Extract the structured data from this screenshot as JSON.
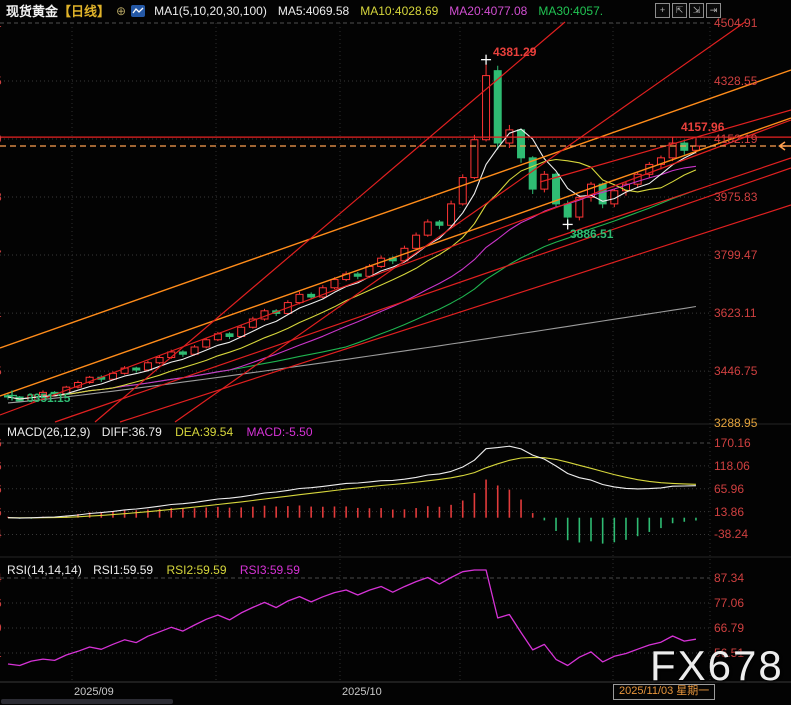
{
  "header": {
    "symbol": "现货黄金",
    "period": "【日线】",
    "expand_icon": "⊕",
    "ma_set_label": "MA1(5,10,20,30,100)",
    "ma5_label": "MA5:4069.58",
    "ma10_label": "MA10:4028.69",
    "ma20_label": "MA20:4077.08",
    "ma30_label": "MA30:4057."
  },
  "toolbar": {
    "icons": [
      {
        "glyph": "+",
        "name": "crosshair-tool-icon"
      },
      {
        "glyph": "⇱",
        "name": "scale-left-tool-icon"
      },
      {
        "glyph": "⇲",
        "name": "scale-right-tool-icon"
      },
      {
        "glyph": "⇥",
        "name": "detach-window-icon"
      }
    ]
  },
  "panes": {
    "macd": {
      "title": "MACD(26,12,9)",
      "diff": "DIFF:36.79",
      "dea": "DEA:39.54",
      "macd": "MACD:-5.50"
    },
    "rsi": {
      "title": "RSI(14,14,14)",
      "rsi1": "RSI1:59.59",
      "rsi2": "RSI2:59.59",
      "rsi3": "RSI3:59.59"
    }
  },
  "annotations": {
    "peak": "4381.29",
    "trough": "3886.51",
    "start_low": "3351.15",
    "alert": "4157.96",
    "bottom_axis": "3288.95"
  },
  "x_axis": {
    "september": "2025/09",
    "october": "2025/10",
    "current_date": "2025/11/03 星期一"
  },
  "watermark": "FX678",
  "colors": {
    "up": "#ff3434",
    "down": "#2fbc73",
    "ma5": "#ededed",
    "ma10": "#d6d63c",
    "ma20": "#c935c9",
    "ma30": "#1fb450",
    "ma100": "#9c9c9c",
    "trend_orange": "#ff8c1a",
    "trend_red": "#e02020",
    "alert_red": "#e82222",
    "last_price_orange": "#ffa050",
    "axis_red": "#cf4040",
    "axis_orange": "#e2a23c",
    "diff_line": "#ededed",
    "dea_line": "#d6d63c",
    "rsi_line": "#d633d6"
  },
  "chart_data": {
    "type": "candlestick",
    "symbol": "现货黄金",
    "interval": "日线",
    "y_max": 4504.91,
    "y_min": 3288.95,
    "y_ticks": [
      "4504.91",
      "4328.55",
      "4152.19",
      "3975.83",
      "3799.47",
      "3623.11",
      "3446.75"
    ],
    "y_bottom_label": "3288.95",
    "macd_ticks": [
      "170.16",
      "118.06",
      "65.96",
      "13.86",
      "-38.24"
    ],
    "rsi_ticks": [
      "87.34",
      "77.06",
      "66.79",
      "56.51"
    ],
    "x_labels": [
      "2025/09",
      "2025/10",
      "2025/11/03 星期一"
    ],
    "alert_price": 4157.96,
    "last_price": 4131,
    "peak_price": 4381.29,
    "trough_price": 3886.51,
    "start_low_price": 3351.15,
    "readouts": {
      "ma5": 4069.58,
      "ma10": 4028.69,
      "ma20": 4077.08,
      "ma30": 4057,
      "diff": 36.79,
      "dea": 39.54,
      "macd": -5.5,
      "rsi1": 59.59,
      "rsi2": 59.59,
      "rsi3": 59.59
    },
    "ma_periods": [
      5,
      10,
      20,
      30,
      100
    ],
    "ma100_endpoints": [
      3350,
      3643
    ],
    "candles": [
      [
        3372,
        3378,
        3360,
        3368
      ],
      [
        3368,
        3371,
        3351.15,
        3356
      ],
      [
        3356,
        3378,
        3352,
        3374
      ],
      [
        3374,
        3388,
        3368,
        3382
      ],
      [
        3382,
        3386,
        3370,
        3378
      ],
      [
        3378,
        3402,
        3374,
        3398
      ],
      [
        3398,
        3418,
        3394,
        3412
      ],
      [
        3412,
        3432,
        3408,
        3428
      ],
      [
        3428,
        3434,
        3414,
        3422
      ],
      [
        3422,
        3446,
        3418,
        3440
      ],
      [
        3440,
        3462,
        3436,
        3456
      ],
      [
        3456,
        3460,
        3442,
        3450
      ],
      [
        3450,
        3478,
        3446,
        3472
      ],
      [
        3472,
        3494,
        3468,
        3488
      ],
      [
        3488,
        3512,
        3484,
        3505
      ],
      [
        3505,
        3510,
        3490,
        3498
      ],
      [
        3498,
        3526,
        3494,
        3520
      ],
      [
        3520,
        3548,
        3516,
        3542
      ],
      [
        3542,
        3566,
        3538,
        3560
      ],
      [
        3560,
        3565,
        3544,
        3552
      ],
      [
        3552,
        3586,
        3548,
        3580
      ],
      [
        3580,
        3612,
        3576,
        3605
      ],
      [
        3605,
        3636,
        3600,
        3630
      ],
      [
        3630,
        3635,
        3614,
        3622
      ],
      [
        3622,
        3662,
        3618,
        3655
      ],
      [
        3655,
        3688,
        3650,
        3680
      ],
      [
        3680,
        3686,
        3664,
        3672
      ],
      [
        3672,
        3708,
        3668,
        3700
      ],
      [
        3700,
        3732,
        3696,
        3725
      ],
      [
        3725,
        3750,
        3720,
        3742
      ],
      [
        3742,
        3748,
        3726,
        3735
      ],
      [
        3735,
        3772,
        3730,
        3765
      ],
      [
        3765,
        3798,
        3760,
        3790
      ],
      [
        3790,
        3796,
        3772,
        3782
      ],
      [
        3782,
        3828,
        3778,
        3820
      ],
      [
        3820,
        3868,
        3815,
        3860
      ],
      [
        3860,
        3908,
        3855,
        3900
      ],
      [
        3900,
        3906,
        3878,
        3890
      ],
      [
        3890,
        3965,
        3885,
        3955
      ],
      [
        3955,
        4045,
        3950,
        4035
      ],
      [
        4035,
        4165,
        4030,
        4150
      ],
      [
        4150,
        4381.29,
        4145,
        4345
      ],
      [
        4360,
        4375,
        4120,
        4140
      ],
      [
        4140,
        4195,
        4125,
        4180
      ],
      [
        4180,
        4185,
        4080,
        4095
      ],
      [
        4095,
        4100,
        3985,
        4000
      ],
      [
        4000,
        4055,
        3990,
        4045
      ],
      [
        4045,
        4050,
        3945,
        3955
      ],
      [
        3955,
        3965,
        3886.51,
        3915
      ],
      [
        3915,
        3982,
        3905,
        3975
      ],
      [
        3975,
        4022,
        3962,
        4015
      ],
      [
        4015,
        4020,
        3942,
        3955
      ],
      [
        3955,
        4000,
        3945,
        3995
      ],
      [
        3995,
        4022,
        3980,
        4015
      ],
      [
        4015,
        4052,
        4005,
        4045
      ],
      [
        4045,
        4082,
        4035,
        4075
      ],
      [
        4075,
        4102,
        4060,
        4095
      ],
      [
        4095,
        4157.96,
        4085,
        4140
      ],
      [
        4140,
        4150,
        4105,
        4118
      ],
      [
        4118,
        4155,
        4108,
        4131
      ]
    ],
    "trendlines": [
      {
        "pts": [
          0,
          348,
          791,
          70
        ],
        "c": "#ff8c1a",
        "w": 1.4
      },
      {
        "pts": [
          0,
          396,
          791,
          118
        ],
        "c": "#ff8c1a",
        "w": 1.4
      },
      {
        "pts": [
          95,
          422,
          565,
          22
        ],
        "c": "#e02020",
        "w": 1.2
      },
      {
        "pts": [
          175,
          422,
          745,
          22
        ],
        "c": "#e02020",
        "w": 1.2
      },
      {
        "pts": [
          0,
          415,
          791,
          120
        ],
        "c": "#e02020",
        "w": 1.2
      },
      {
        "pts": [
          55,
          422,
          791,
          168
        ],
        "c": "#e02020",
        "w": 1.2
      },
      {
        "pts": [
          120,
          422,
          791,
          205
        ],
        "c": "#e02020",
        "w": 1.2
      },
      {
        "pts": [
          540,
          182,
          791,
          110
        ],
        "c": "#e02020",
        "w": 1.2
      },
      {
        "pts": [
          548,
          240,
          791,
          158
        ],
        "c": "#e02020",
        "w": 1.2
      }
    ]
  }
}
